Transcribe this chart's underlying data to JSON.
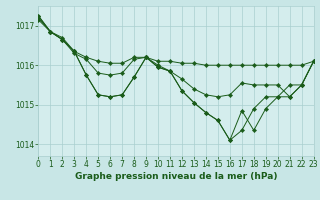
{
  "background_color": "#c8e6e6",
  "plot_bg_color": "#d4eded",
  "grid_color": "#aacfcf",
  "line_color": "#1a5c1a",
  "xlabel": "Graphe pression niveau de la mer (hPa)",
  "xlim": [
    0,
    23
  ],
  "ylim": [
    1013.7,
    1017.5
  ],
  "yticks": [
    1014,
    1015,
    1016,
    1017
  ],
  "xticks": [
    0,
    1,
    2,
    3,
    4,
    5,
    6,
    7,
    8,
    9,
    10,
    11,
    12,
    13,
    14,
    15,
    16,
    17,
    18,
    19,
    20,
    21,
    22,
    23
  ],
  "line1_x": [
    0,
    1,
    2,
    3,
    4,
    5,
    6,
    7,
    8,
    9,
    10,
    11,
    12,
    13,
    14,
    15,
    16,
    17,
    18,
    19,
    20,
    21,
    22,
    23
  ],
  "line1_y": [
    1017.15,
    1016.85,
    1016.7,
    1016.35,
    1016.2,
    1016.1,
    1016.05,
    1016.05,
    1016.2,
    1016.2,
    1016.1,
    1016.1,
    1016.05,
    1016.05,
    1016.0,
    1016.0,
    1016.0,
    1016.0,
    1016.0,
    1016.0,
    1016.0,
    1016.0,
    1016.0,
    1016.1
  ],
  "line2_x": [
    0,
    1,
    2,
    3,
    4,
    5,
    6,
    7,
    8,
    9,
    10,
    11,
    12,
    13,
    14,
    15,
    16,
    17,
    18,
    19,
    20,
    21,
    22,
    23
  ],
  "line2_y": [
    1017.2,
    1016.85,
    1016.65,
    1016.3,
    1016.15,
    1015.8,
    1015.75,
    1015.8,
    1016.15,
    1016.2,
    1016.0,
    1015.85,
    1015.65,
    1015.4,
    1015.25,
    1015.2,
    1015.25,
    1015.55,
    1015.5,
    1015.5,
    1015.5,
    1015.2,
    1015.5,
    1016.1
  ],
  "line3_x": [
    0,
    1,
    2,
    3,
    4,
    5,
    6,
    7,
    8,
    9,
    10,
    11,
    12,
    13,
    14,
    15,
    16,
    17,
    18,
    19,
    20,
    21,
    22,
    23
  ],
  "line3_y": [
    1017.25,
    1016.85,
    1016.65,
    1016.35,
    1015.75,
    1015.25,
    1015.2,
    1015.25,
    1015.7,
    1016.2,
    1015.95,
    1015.85,
    1015.35,
    1015.05,
    1014.8,
    1014.6,
    1014.1,
    1014.85,
    1014.35,
    1014.9,
    1015.2,
    1015.2,
    1015.5,
    1016.1
  ],
  "line4_x": [
    0,
    1,
    2,
    3,
    4,
    5,
    6,
    7,
    8,
    9,
    10,
    11,
    12,
    13,
    14,
    15,
    16,
    17,
    18,
    19,
    20,
    21,
    22,
    23
  ],
  "line4_y": [
    1017.25,
    1016.85,
    1016.65,
    1016.35,
    1015.75,
    1015.25,
    1015.2,
    1015.25,
    1015.7,
    1016.2,
    1015.95,
    1015.85,
    1015.35,
    1015.05,
    1014.8,
    1014.6,
    1014.1,
    1014.35,
    1014.9,
    1015.2,
    1015.2,
    1015.5,
    1015.5,
    1016.1
  ],
  "font_color": "#1a5c1a",
  "font_size_label": 6.5,
  "font_size_tick": 5.5
}
